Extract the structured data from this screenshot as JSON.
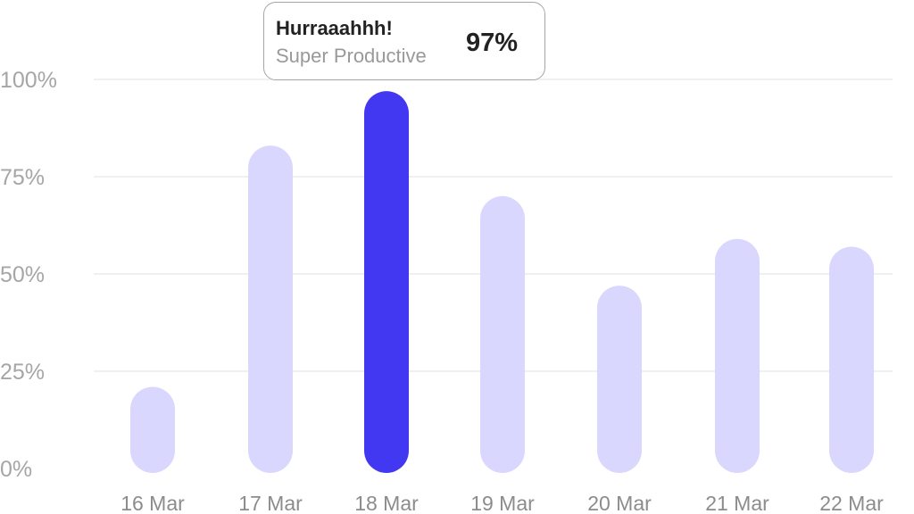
{
  "chart_data": {
    "type": "bar",
    "categories": [
      "16 Mar",
      "17 Mar",
      "18 Mar",
      "19 Mar",
      "20 Mar",
      "21 Mar",
      "22 Mar"
    ],
    "values": [
      21,
      83,
      97,
      70,
      47,
      59,
      57
    ],
    "ylim": [
      0,
      100
    ],
    "yticks": [
      "0%",
      "25%",
      "50%",
      "75%",
      "100%"
    ],
    "grid": true,
    "highlight_index": 2,
    "colors": {
      "bar": "#d9d7fd",
      "highlight": "#4338f2",
      "grid": "#ececec"
    },
    "tooltip": {
      "title": "Hurraaahhh!",
      "subtitle": "Super Productive",
      "value": "97%"
    }
  }
}
